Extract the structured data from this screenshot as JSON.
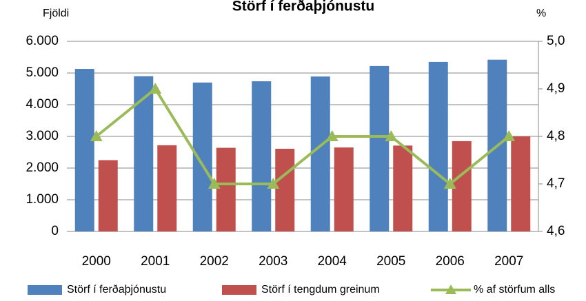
{
  "chart_data": {
    "type": "bar_line",
    "title": "Störf í ferðaþjónustu",
    "ylabel": "Fjöldi",
    "y2label": "%",
    "categories": [
      "2000",
      "2001",
      "2002",
      "2003",
      "2004",
      "2005",
      "2006",
      "2007"
    ],
    "series": [
      {
        "name": "Störf í ferðaþjónustu",
        "color": "#4f81bd",
        "type": "bar",
        "values": [
          5130,
          4900,
          4700,
          4740,
          4890,
          5220,
          5350,
          5420
        ]
      },
      {
        "name": "Störf í tengdum greinum",
        "color": "#c0504d",
        "type": "bar",
        "values": [
          2250,
          2720,
          2640,
          2610,
          2650,
          2710,
          2850,
          3000
        ]
      },
      {
        "name": "% af störfum alls",
        "color": "#9bbb59",
        "type": "line",
        "axis": "y2",
        "values": [
          4.8,
          4.9,
          4.7,
          4.7,
          4.8,
          4.8,
          4.7,
          4.8
        ]
      }
    ],
    "ylim": [
      0,
      6000
    ],
    "yticks": [
      0,
      {
        "value": 1000,
        "label": "1.000"
      },
      {
        "value": 2000,
        "label": "2.000"
      },
      {
        "value": 3000,
        "label": "3.000"
      },
      {
        "value": 4000,
        "label": "4.000"
      },
      {
        "value": 5000,
        "label": "5.000"
      },
      {
        "value": 6000,
        "label": "6.000"
      }
    ],
    "y2lim": [
      4.6,
      5.0
    ],
    "y2ticks": [
      {
        "value": 4.6,
        "label": "4,6"
      },
      {
        "value": 4.7,
        "label": "4,7"
      },
      {
        "value": 4.8,
        "label": "4,8"
      },
      {
        "value": 4.9,
        "label": "4,9"
      },
      {
        "value": 5.0,
        "label": "5,0"
      }
    ],
    "grid": true,
    "legend": "bottom"
  }
}
